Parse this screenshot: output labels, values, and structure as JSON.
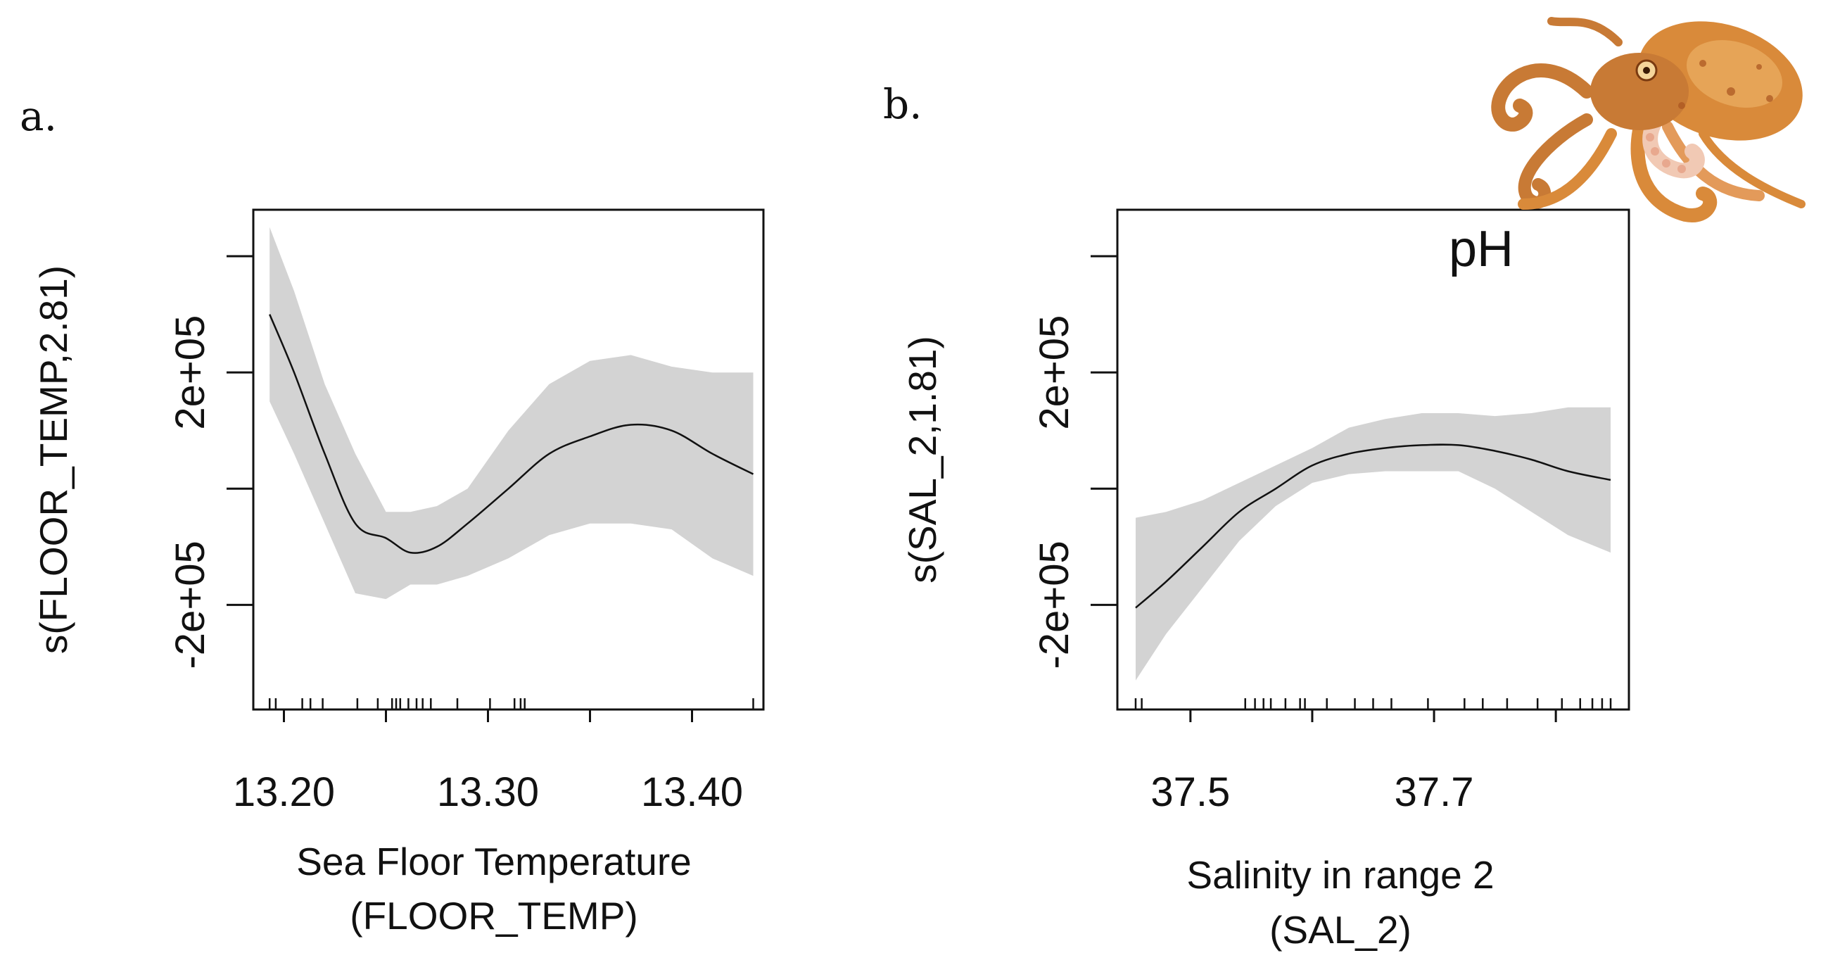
{
  "colors": {
    "band": "#d3d3d3",
    "line": "#111111",
    "axis": "#111111",
    "background": "#ffffff",
    "octopus_body": "#d98a3a",
    "octopus_dark": "#a9541f",
    "octopus_sucker": "#f1c9b4"
  },
  "illustration": {
    "icon": "octopus-icon"
  },
  "chart_data": [
    {
      "type": "line",
      "panel_label": "a.",
      "title": "",
      "annotation": "",
      "xlabel_line1": "Sea Floor Temperature",
      "xlabel_line2": "(FLOOR_TEMP)",
      "ylabel": "s(FLOOR_TEMP,2.81)",
      "xlim": [
        13.185,
        13.435
      ],
      "ylim": [
        -380000,
        480000
      ],
      "xticks": [
        13.2,
        13.25,
        13.3,
        13.35,
        13.4
      ],
      "xtick_labels": [
        "13.20",
        "",
        "13.30",
        "",
        "13.40"
      ],
      "yticks": [
        -200000,
        0,
        200000,
        400000
      ],
      "ytick_labels": [
        "-2e+05",
        "",
        "2e+05",
        ""
      ],
      "x": [
        13.193,
        13.205,
        13.22,
        13.235,
        13.25,
        13.262,
        13.275,
        13.29,
        13.31,
        13.33,
        13.35,
        13.37,
        13.39,
        13.41,
        13.43
      ],
      "fit": [
        300000,
        200000,
        60000,
        -60000,
        -85000,
        -110000,
        -100000,
        -60000,
        0,
        60000,
        90000,
        110000,
        100000,
        60000,
        25000
      ],
      "lower": [
        150000,
        60000,
        -60000,
        -180000,
        -190000,
        -165000,
        -165000,
        -150000,
        -120000,
        -80000,
        -60000,
        -60000,
        -70000,
        -120000,
        -150000
      ],
      "upper": [
        450000,
        340000,
        180000,
        60000,
        -40000,
        -40000,
        -30000,
        0,
        100000,
        180000,
        220000,
        230000,
        210000,
        200000,
        200000
      ],
      "rug": [
        13.193,
        13.196,
        13.209,
        13.213,
        13.219,
        13.236,
        13.246,
        13.253,
        13.255,
        13.257,
        13.261,
        13.265,
        13.268,
        13.272,
        13.285,
        13.301,
        13.313,
        13.316,
        13.318,
        13.43
      ]
    },
    {
      "type": "line",
      "panel_label": "b.",
      "title": "",
      "annotation": "pH",
      "xlabel_line1": "Salinity in range 2",
      "xlabel_line2": "(SAL_2)",
      "ylabel": "s(SAL_2,1.81)",
      "xlim": [
        37.44,
        37.86
      ],
      "ylim": [
        -380000,
        480000
      ],
      "xticks": [
        37.5,
        37.6,
        37.7,
        37.8
      ],
      "xtick_labels": [
        "37.5",
        "",
        "37.7",
        ""
      ],
      "yticks": [
        -200000,
        0,
        200000,
        400000
      ],
      "ytick_labels": [
        "-2e+05",
        "",
        "2e+05",
        ""
      ],
      "x": [
        37.455,
        37.48,
        37.51,
        37.54,
        37.57,
        37.6,
        37.63,
        37.66,
        37.69,
        37.72,
        37.75,
        37.78,
        37.81,
        37.845
      ],
      "fit": [
        -205000,
        -160000,
        -100000,
        -40000,
        0,
        40000,
        60000,
        70000,
        75000,
        75000,
        65000,
        50000,
        30000,
        15000
      ],
      "lower": [
        -330000,
        -250000,
        -170000,
        -90000,
        -30000,
        10000,
        25000,
        30000,
        30000,
        30000,
        0,
        -40000,
        -80000,
        -110000
      ],
      "upper": [
        -50000,
        -40000,
        -20000,
        10000,
        40000,
        70000,
        105000,
        120000,
        130000,
        130000,
        125000,
        130000,
        140000,
        140000
      ],
      "rug": [
        37.455,
        37.46,
        37.545,
        37.553,
        37.56,
        37.566,
        37.578,
        37.59,
        37.594,
        37.612,
        37.635,
        37.65,
        37.665,
        37.695,
        37.725,
        37.74,
        37.76,
        37.785,
        37.805,
        37.82,
        37.83,
        37.838,
        37.845
      ]
    }
  ]
}
